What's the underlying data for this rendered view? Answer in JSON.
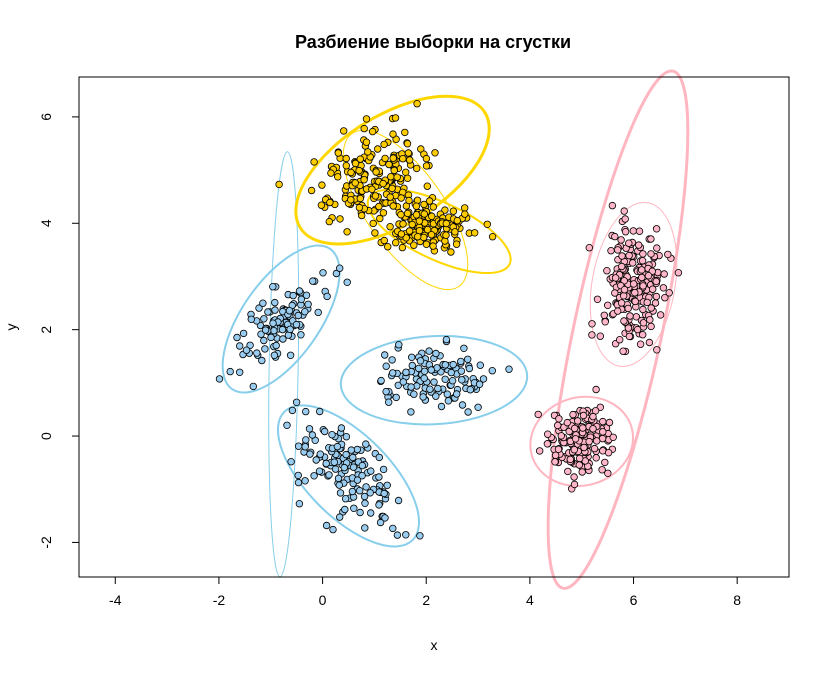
{
  "chart_data": {
    "type": "scatter",
    "title": "Разбиение выборки на сгустки",
    "xlabel": "x",
    "ylabel": "y",
    "xlim": [
      -4.7,
      9.0
    ],
    "ylim": [
      -2.65,
      6.75
    ],
    "x_ticks": [
      -4,
      -2,
      0,
      2,
      4,
      6,
      8
    ],
    "y_ticks": [
      -2,
      0,
      2,
      4,
      6
    ],
    "x_tick_labels": [
      "-4",
      "-2",
      "0",
      "2",
      "4",
      "6",
      "8"
    ],
    "y_tick_labels": [
      "-2",
      "0",
      "2",
      "4",
      "6"
    ],
    "grid": false,
    "colors": {
      "blue": "#99CCEE",
      "gold": "#FFCC00",
      "pink": "#FFB6C8",
      "blue_line": "#87CEEB",
      "gold_line": "#FFD700",
      "pink_line": "#FFB6C1"
    },
    "clusters": [
      {
        "color": "blue",
        "cx": -0.8,
        "cy": 2.2,
        "sx": 0.45,
        "sy": 0.45,
        "rho": 0.7,
        "n": 110
      },
      {
        "color": "blue",
        "cx": 0.5,
        "cy": -0.7,
        "sx": 0.5,
        "sy": 0.5,
        "rho": -0.6,
        "n": 140
      },
      {
        "color": "blue",
        "cx": 2.1,
        "cy": 1.05,
        "sx": 0.55,
        "sy": 0.3,
        "rho": 0.1,
        "n": 120
      },
      {
        "color": "gold",
        "cx": 0.9,
        "cy": 4.9,
        "sx": 0.5,
        "sy": 0.45,
        "rho": 0.3,
        "n": 190
      },
      {
        "color": "gold",
        "cx": 2.0,
        "cy": 4.0,
        "sx": 0.4,
        "sy": 0.25,
        "rho": -0.3,
        "n": 170
      },
      {
        "color": "pink",
        "cx": 6.0,
        "cy": 2.8,
        "sx": 0.3,
        "sy": 0.65,
        "rho": 0.1,
        "n": 200
      },
      {
        "color": "pink",
        "cx": 5.0,
        "cy": -0.1,
        "sx": 0.3,
        "sy": 0.3,
        "rho": 0.2,
        "n": 180
      }
    ],
    "ellipses": [
      {
        "color": "blue_line",
        "cx": -0.75,
        "cy": 1.35,
        "a": 4.1,
        "b": 0.28,
        "angle": 89,
        "width": 1
      },
      {
        "color": "blue_line",
        "cx": -0.8,
        "cy": 2.2,
        "a": 1.65,
        "b": 0.75,
        "angle": 55,
        "width": 2
      },
      {
        "color": "blue_line",
        "cx": 0.5,
        "cy": -0.75,
        "a": 1.75,
        "b": 0.8,
        "angle": -45,
        "width": 2
      },
      {
        "color": "blue_line",
        "cx": 2.15,
        "cy": 1.05,
        "a": 1.8,
        "b": 0.85,
        "angle": 3,
        "width": 2
      },
      {
        "color": "gold_line",
        "cx": 1.6,
        "cy": 4.25,
        "a": 1.8,
        "b": 0.75,
        "angle": -55,
        "width": 1
      },
      {
        "color": "gold_line",
        "cx": 1.35,
        "cy": 5.0,
        "a": 2.1,
        "b": 1.05,
        "angle": 32,
        "width": 3
      },
      {
        "color": "gold_line",
        "cx": 2.25,
        "cy": 3.85,
        "a": 1.5,
        "b": 0.55,
        "angle": -25,
        "width": 2
      },
      {
        "color": "pink_line",
        "cx": 5.7,
        "cy": 2.0,
        "a": 5.1,
        "b": 0.85,
        "angle": 78,
        "width": 3
      },
      {
        "color": "pink_line",
        "cx": 6.0,
        "cy": 2.85,
        "a": 1.6,
        "b": 0.8,
        "angle": 80,
        "width": 1
      },
      {
        "color": "pink_line",
        "cx": 5.0,
        "cy": -0.1,
        "a": 1.0,
        "b": 0.85,
        "angle": 15,
        "width": 2
      }
    ]
  }
}
